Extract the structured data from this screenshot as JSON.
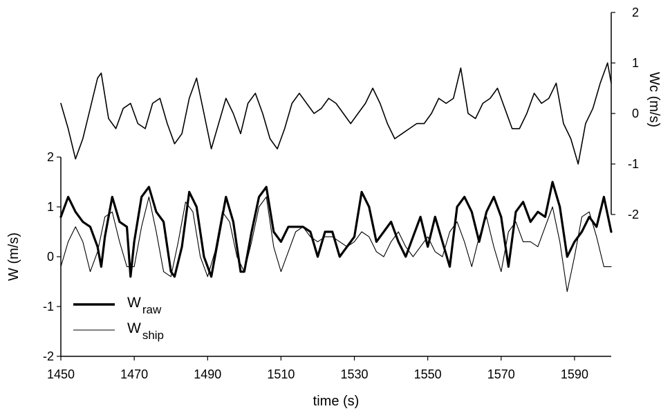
{
  "chart_data": {
    "type": "line",
    "xlabel": "time (s)",
    "xlim": [
      1450,
      1600
    ],
    "xticks": [
      "1450",
      "1470",
      "1490",
      "1510",
      "1530",
      "1550",
      "1570",
      "1590"
    ],
    "left_axis": {
      "label": "W (m/s)",
      "ylim": [
        -2,
        2
      ],
      "ticks": [
        "2",
        "1",
        "0",
        "-1",
        "-2"
      ]
    },
    "right_axis": {
      "label": "Wc (m/s)",
      "ylim": [
        -2,
        2
      ],
      "ticks": [
        "2",
        "1",
        "0",
        "-1",
        "-2"
      ]
    },
    "legend": {
      "position": "lower-left",
      "entries": [
        {
          "main": "W",
          "sub": "raw",
          "line": "thick"
        },
        {
          "main": "W",
          "sub": "ship",
          "line": "thin"
        }
      ]
    },
    "grid": false,
    "series": [
      {
        "name": "Wraw",
        "axis": "left",
        "color": "#000000",
        "x": [
          1450,
          1452,
          1454,
          1456,
          1458,
          1460,
          1461,
          1462,
          1464,
          1466,
          1468,
          1469,
          1470,
          1472,
          1474,
          1476,
          1478,
          1480,
          1481,
          1483,
          1485,
          1487,
          1489,
          1491,
          1493,
          1495,
          1497,
          1499,
          1500,
          1502,
          1504,
          1506,
          1508,
          1510,
          1512,
          1514,
          1516,
          1518,
          1520,
          1522,
          1524,
          1526,
          1528,
          1530,
          1532,
          1534,
          1536,
          1538,
          1540,
          1542,
          1544,
          1546,
          1548,
          1550,
          1552,
          1554,
          1556,
          1558,
          1560,
          1562,
          1564,
          1566,
          1568,
          1570,
          1572,
          1574,
          1576,
          1578,
          1580,
          1582,
          1584,
          1586,
          1588,
          1590,
          1592,
          1594,
          1596,
          1598,
          1600
        ],
        "y": [
          0.8,
          1.2,
          0.9,
          0.7,
          0.6,
          0.2,
          -0.2,
          0.4,
          1.2,
          0.7,
          0.6,
          -0.4,
          0.3,
          1.2,
          1.4,
          0.9,
          0.7,
          -0.3,
          -0.4,
          0.2,
          1.3,
          1.0,
          0.0,
          -0.4,
          0.4,
          1.2,
          0.7,
          -0.3,
          -0.3,
          0.5,
          1.2,
          1.4,
          0.5,
          0.3,
          0.6,
          0.6,
          0.6,
          0.5,
          0.0,
          0.5,
          0.5,
          0.0,
          0.2,
          0.4,
          1.3,
          1.0,
          0.3,
          0.5,
          0.7,
          0.3,
          0.0,
          0.4,
          0.8,
          0.2,
          0.8,
          0.3,
          -0.2,
          1.0,
          1.2,
          0.9,
          0.3,
          0.9,
          1.2,
          0.8,
          -0.2,
          0.9,
          1.1,
          0.7,
          0.9,
          0.8,
          1.5,
          1.0,
          0.0,
          0.3,
          0.5,
          0.8,
          0.6,
          1.2,
          0.5
        ]
      },
      {
        "name": "Wship",
        "axis": "left",
        "color": "#000000",
        "x": [
          1450,
          1452,
          1454,
          1456,
          1458,
          1460,
          1462,
          1464,
          1466,
          1468,
          1470,
          1472,
          1474,
          1476,
          1478,
          1480,
          1482,
          1484,
          1486,
          1488,
          1490,
          1492,
          1494,
          1496,
          1498,
          1500,
          1502,
          1504,
          1506,
          1508,
          1510,
          1512,
          1514,
          1516,
          1518,
          1520,
          1522,
          1524,
          1526,
          1528,
          1530,
          1532,
          1534,
          1536,
          1538,
          1540,
          1542,
          1544,
          1546,
          1548,
          1550,
          1552,
          1554,
          1556,
          1558,
          1560,
          1562,
          1564,
          1566,
          1568,
          1570,
          1572,
          1574,
          1576,
          1578,
          1580,
          1582,
          1584,
          1586,
          1588,
          1590,
          1592,
          1594,
          1596,
          1598,
          1600
        ],
        "y": [
          -0.2,
          0.3,
          0.6,
          0.3,
          -0.3,
          0.1,
          0.8,
          0.9,
          0.3,
          -0.2,
          -0.2,
          0.6,
          1.2,
          0.5,
          -0.3,
          -0.4,
          0.3,
          1.1,
          0.9,
          0.0,
          -0.4,
          0.1,
          0.9,
          0.7,
          0.0,
          -0.3,
          0.3,
          1.0,
          1.2,
          0.2,
          -0.3,
          0.1,
          0.5,
          0.6,
          0.4,
          0.3,
          0.4,
          0.4,
          0.3,
          0.2,
          0.3,
          0.5,
          0.4,
          0.1,
          0.0,
          0.3,
          0.5,
          0.2,
          0.0,
          0.2,
          0.4,
          0.1,
          0.0,
          0.5,
          0.7,
          0.3,
          -0.2,
          0.4,
          0.8,
          0.2,
          -0.3,
          0.5,
          0.7,
          0.3,
          0.3,
          0.2,
          0.6,
          1.0,
          0.3,
          -0.7,
          0.0,
          0.8,
          0.9,
          0.4,
          -0.2,
          -0.2
        ]
      },
      {
        "name": "Wc",
        "axis": "right",
        "color": "#000000",
        "x": [
          1450,
          1452,
          1454,
          1456,
          1458,
          1460,
          1461,
          1463,
          1465,
          1467,
          1469,
          1471,
          1473,
          1475,
          1477,
          1479,
          1481,
          1483,
          1485,
          1487,
          1489,
          1491,
          1493,
          1495,
          1497,
          1499,
          1501,
          1503,
          1505,
          1507,
          1509,
          1511,
          1513,
          1515,
          1517,
          1519,
          1521,
          1523,
          1525,
          1527,
          1529,
          1531,
          1533,
          1535,
          1537,
          1539,
          1541,
          1543,
          1545,
          1547,
          1549,
          1551,
          1553,
          1555,
          1557,
          1559,
          1561,
          1563,
          1565,
          1567,
          1569,
          1571,
          1573,
          1575,
          1577,
          1579,
          1581,
          1583,
          1585,
          1587,
          1589,
          1591,
          1593,
          1595,
          1597,
          1599,
          1600
        ],
        "y": [
          0.2,
          -0.3,
          -0.9,
          -0.5,
          0.1,
          0.7,
          0.8,
          -0.1,
          -0.3,
          0.1,
          0.2,
          -0.2,
          -0.3,
          0.2,
          0.3,
          -0.2,
          -0.6,
          -0.4,
          0.3,
          0.7,
          0.0,
          -0.7,
          -0.2,
          0.3,
          0.0,
          -0.4,
          0.2,
          0.4,
          0.0,
          -0.5,
          -0.7,
          -0.3,
          0.2,
          0.4,
          0.2,
          0.0,
          0.1,
          0.3,
          0.2,
          0.0,
          -0.2,
          0.0,
          0.2,
          0.5,
          0.2,
          -0.2,
          -0.5,
          -0.4,
          -0.3,
          -0.2,
          -0.2,
          0.0,
          0.3,
          0.2,
          0.3,
          0.9,
          0.0,
          -0.1,
          0.2,
          0.3,
          0.5,
          0.1,
          -0.3,
          -0.3,
          0.0,
          0.4,
          0.2,
          0.3,
          0.6,
          -0.2,
          -0.5,
          -1.0,
          -0.2,
          0.1,
          0.6,
          1.0,
          0.6
        ]
      }
    ]
  }
}
